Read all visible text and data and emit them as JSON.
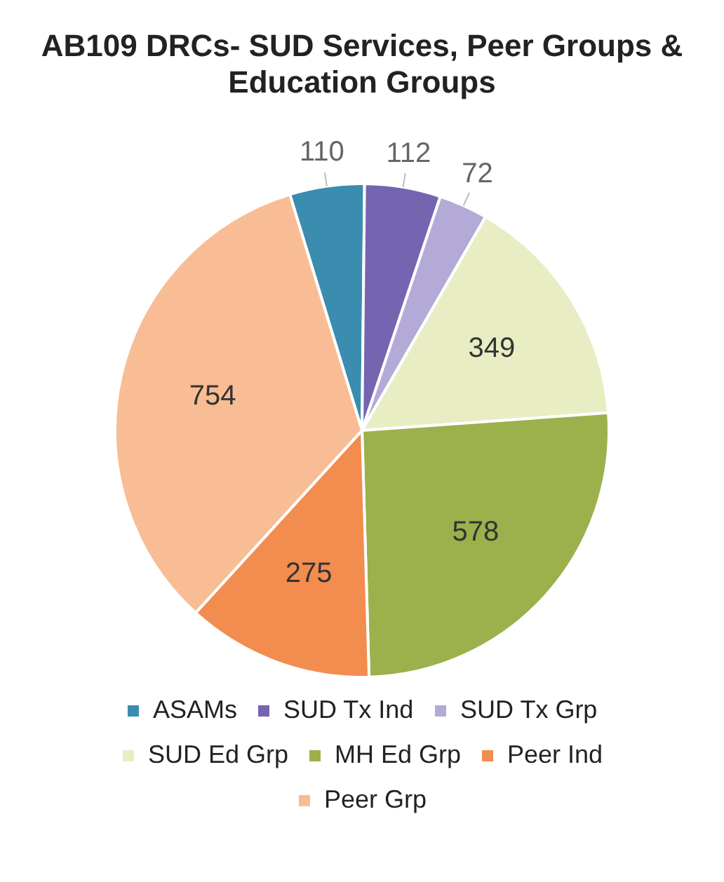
{
  "chart_data": {
    "type": "pie",
    "title": "AB109 DRCs- SUD Services, Peer Groups & Education Groups",
    "categories": [
      "ASAMs",
      "SUD Tx Ind",
      "SUD Tx Grp",
      "SUD Ed Grp",
      "MH Ed Grp",
      "Peer Ind",
      "Peer Grp"
    ],
    "values": [
      110,
      112,
      72,
      349,
      578,
      275,
      754
    ],
    "colors": [
      "#3b8db0",
      "#7565b0",
      "#b4aad8",
      "#e9edc4",
      "#9cb04c",
      "#f38c4f",
      "#f8bd94"
    ],
    "data_labels": true,
    "legend": "bottom"
  }
}
